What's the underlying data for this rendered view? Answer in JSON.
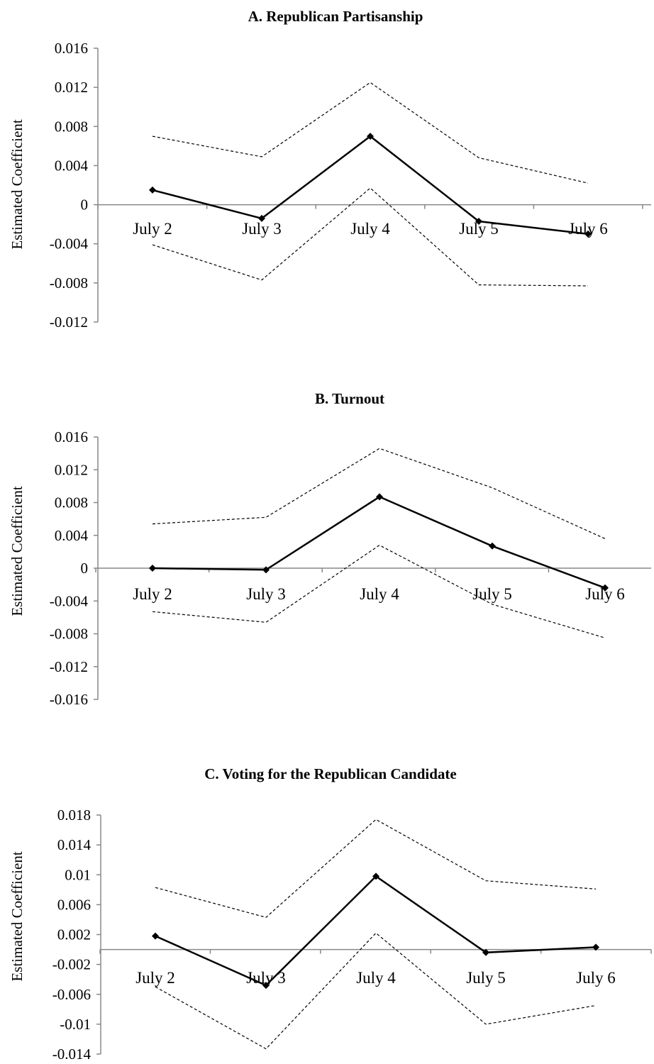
{
  "chart_data": [
    {
      "type": "line",
      "title": "A. Republican Partisanship",
      "ylabel": "Estimated Coefficient",
      "xlabel": "",
      "categories": [
        "July 2",
        "July 3",
        "July 4",
        "July 5",
        "July 6"
      ],
      "yticks": [
        "0.016",
        "0.012",
        "0.008",
        "0.004",
        "0",
        "-0.004",
        "-0.008",
        "-0.012"
      ],
      "ylim": [
        -0.012,
        0.016
      ],
      "series": [
        {
          "values": [
            0.0015,
            -0.0014,
            0.007,
            -0.0017,
            -0.003
          ],
          "style": "solid",
          "marker": "diamond"
        },
        {
          "values": [
            0.007,
            0.0049,
            0.0125,
            0.0048,
            0.0022
          ],
          "style": "dashed"
        },
        {
          "values": [
            -0.0041,
            -0.0077,
            0.0017,
            -0.0082,
            -0.0083
          ],
          "style": "dashed"
        }
      ]
    },
    {
      "type": "line",
      "title": "B. Turnout",
      "ylabel": "Estimated Coefficient",
      "xlabel": "",
      "categories": [
        "July 2",
        "July 3",
        "July 4",
        "July 5",
        "July 6"
      ],
      "yticks": [
        "0.016",
        "0.012",
        "0.008",
        "0.004",
        "0",
        "-0.004",
        "-0.008",
        "-0.012",
        "-0.016"
      ],
      "ylim": [
        -0.016,
        0.016
      ],
      "series": [
        {
          "values": [
            0.0,
            -0.0002,
            0.0087,
            0.0027,
            -0.0024
          ],
          "style": "solid",
          "marker": "diamond"
        },
        {
          "values": [
            0.0054,
            0.0062,
            0.0146,
            0.0098,
            0.0036
          ],
          "style": "dashed"
        },
        {
          "values": [
            -0.0053,
            -0.0066,
            0.0028,
            -0.0044,
            -0.0085
          ],
          "style": "dashed"
        }
      ]
    },
    {
      "type": "line",
      "title": "C. Voting for the Republican Candidate",
      "ylabel": "Estimated Coefficient",
      "xlabel": "",
      "categories": [
        "July 2",
        "July 3",
        "July 4",
        "July 5",
        "July 6"
      ],
      "yticks": [
        "0.018",
        "0.014",
        "0.01",
        "0.006",
        "0.002",
        "-0.002",
        "-0.006",
        "-0.01",
        "-0.014"
      ],
      "ylim": [
        -0.014,
        0.018
      ],
      "series": [
        {
          "values": [
            0.0018,
            -0.0048,
            0.0098,
            -0.0004,
            0.0003
          ],
          "style": "solid",
          "marker": "diamond"
        },
        {
          "values": [
            0.0083,
            0.0043,
            0.0174,
            0.0092,
            0.0081
          ],
          "style": "dashed"
        },
        {
          "values": [
            -0.005,
            -0.0133,
            0.0022,
            -0.01,
            -0.0075
          ],
          "style": "dashed"
        }
      ]
    }
  ]
}
